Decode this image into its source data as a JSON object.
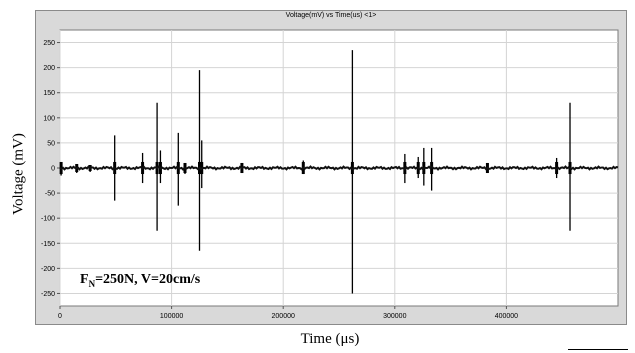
{
  "chart_data": {
    "type": "line",
    "title": "Voltage(mV) vs Time(us) <1>",
    "xlabel": "Time (μs)",
    "ylabel": "Voltage (mV)",
    "xlim": [
      0,
      500000
    ],
    "ylim": [
      -275,
      275
    ],
    "xticks": [
      0,
      100000,
      200000,
      300000,
      400000
    ],
    "yticks": [
      250,
      200,
      150,
      100,
      50,
      0,
      -50,
      -100,
      -150,
      -200,
      -250
    ],
    "grid": true,
    "annotation": {
      "f_symbol": "F",
      "f_subscript": "N",
      "text_rest": "=250N, V=20cm/s"
    },
    "series": [
      {
        "spikes": [
          {
            "x": 1000,
            "max": 12,
            "min": -15
          },
          {
            "x": 15000,
            "max": 8,
            "min": -10
          },
          {
            "x": 27000,
            "max": 6,
            "min": -8
          },
          {
            "x": 49000,
            "max": 65,
            "min": -65
          },
          {
            "x": 74000,
            "max": 30,
            "min": -30
          },
          {
            "x": 87000,
            "max": 130,
            "min": -125
          },
          {
            "x": 90000,
            "max": 35,
            "min": -30
          },
          {
            "x": 106000,
            "max": 70,
            "min": -75
          },
          {
            "x": 112000,
            "max": 10,
            "min": -12
          },
          {
            "x": 125000,
            "max": 195,
            "min": -165
          },
          {
            "x": 127000,
            "max": 55,
            "min": -40
          },
          {
            "x": 163000,
            "max": 10,
            "min": -10
          },
          {
            "x": 218000,
            "max": 15,
            "min": -12
          },
          {
            "x": 262000,
            "max": 235,
            "min": -250
          },
          {
            "x": 309000,
            "max": 28,
            "min": -30
          },
          {
            "x": 321000,
            "max": 22,
            "min": -20
          },
          {
            "x": 326000,
            "max": 40,
            "min": -35
          },
          {
            "x": 333000,
            "max": 40,
            "min": -45
          },
          {
            "x": 383000,
            "max": 10,
            "min": -10
          },
          {
            "x": 445000,
            "max": 20,
            "min": -20
          },
          {
            "x": 457000,
            "max": 130,
            "min": -125
          }
        ]
      }
    ]
  }
}
